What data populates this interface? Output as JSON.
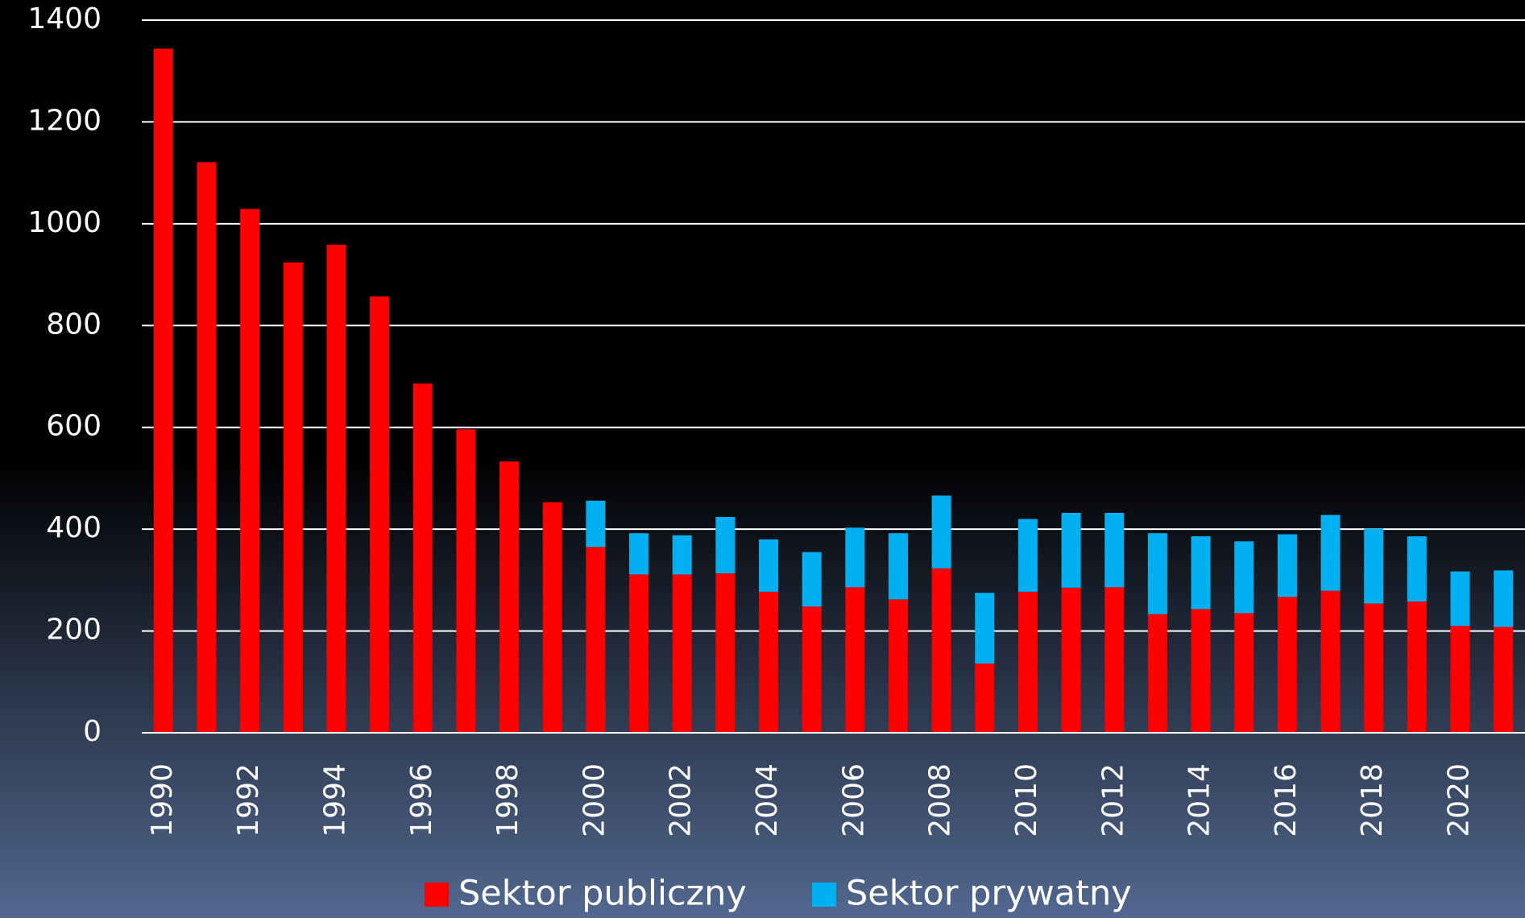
{
  "chart_data": {
    "type": "stacked_bar",
    "categories": [
      "1990",
      null,
      "1992",
      null,
      "1994",
      null,
      "1996",
      null,
      "1998",
      null,
      "2000",
      null,
      "2002",
      null,
      "2004",
      null,
      "2006",
      null,
      "2008",
      null,
      "2010",
      null,
      "2012",
      null,
      "2014",
      null,
      "2016",
      null,
      "2018",
      null,
      "2020",
      null
    ],
    "series": [
      {
        "name": "Sektor publiczny",
        "color": "#ff0000",
        "values": [
          1344,
          1121,
          1029,
          924,
          959,
          857,
          686,
          596,
          533,
          453,
          365,
          311,
          311,
          313,
          277,
          248,
          286,
          262,
          323,
          136,
          277,
          285,
          286,
          233,
          243,
          235,
          267,
          279,
          254,
          258,
          210,
          208
        ]
      },
      {
        "name": "Sektor prywatny",
        "color": "#00b0f0",
        "values": [
          0,
          0,
          0,
          0,
          0,
          0,
          0,
          0,
          0,
          0,
          91,
          81,
          77,
          111,
          103,
          107,
          117,
          130,
          143,
          139,
          143,
          147,
          146,
          159,
          143,
          141,
          123,
          149,
          147,
          128,
          107,
          111
        ]
      }
    ],
    "ylim": [
      0,
      1400
    ],
    "yticks": [
      0,
      200,
      400,
      600,
      800,
      1000,
      1200,
      1400
    ],
    "grid": true,
    "legend": "bottom"
  }
}
